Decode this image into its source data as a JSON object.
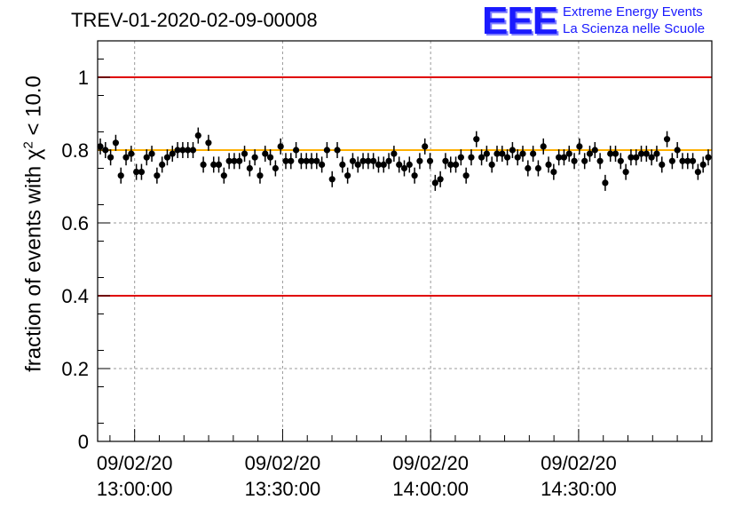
{
  "title": "TREV-01-2020-02-09-00008",
  "logo": {
    "mark": "EEE",
    "line1": "Extreme Energy Events",
    "line2": "La Scienza nelle Scuole",
    "color": "#1a1aff"
  },
  "chart_data": {
    "type": "scatter",
    "ylabel_prefix": "fraction of events with χ",
    "ylabel_sup": "2",
    "ylabel_suffix": " < 10.0",
    "ylim": [
      0,
      1.1
    ],
    "yticks": [
      "0",
      "0.2",
      "0.4",
      "0.6",
      "0.8",
      "1"
    ],
    "ytick_values": [
      0,
      0.2,
      0.4,
      0.6,
      0.8,
      1.0
    ],
    "xlim_minutes_since_1300": [
      -7.5,
      117
    ],
    "xtick_labels": [
      {
        "date": "09/02/20",
        "time": "13:00:00",
        "minute": 0
      },
      {
        "date": "09/02/20",
        "time": "13:30:00",
        "minute": 30
      },
      {
        "date": "09/02/20",
        "time": "14:00:00",
        "minute": 60
      },
      {
        "date": "09/02/20",
        "time": "14:30:00",
        "minute": 90
      }
    ],
    "grid": true,
    "reference_lines": [
      {
        "y": 1.0,
        "color": "#e00000"
      },
      {
        "y": 0.4,
        "color": "#e00000"
      },
      {
        "y": 0.8,
        "color": "#ffb000"
      }
    ],
    "marker_color": "#000000",
    "error_bar": 0.022,
    "y": [
      0.81,
      0.8,
      0.78,
      0.82,
      0.73,
      0.78,
      0.79,
      0.74,
      0.74,
      0.78,
      0.79,
      0.73,
      0.76,
      0.78,
      0.79,
      0.8,
      0.8,
      0.8,
      0.8,
      0.84,
      0.76,
      0.82,
      0.76,
      0.76,
      0.73,
      0.77,
      0.77,
      0.77,
      0.79,
      0.75,
      0.78,
      0.73,
      0.79,
      0.78,
      0.75,
      0.81,
      0.77,
      0.77,
      0.8,
      0.77,
      0.77,
      0.77,
      0.77,
      0.76,
      0.8,
      0.72,
      0.8,
      0.76,
      0.73,
      0.77,
      0.76,
      0.77,
      0.77,
      0.77,
      0.76,
      0.76,
      0.77,
      0.79,
      0.76,
      0.75,
      0.76,
      0.73,
      0.77,
      0.81,
      0.77,
      0.71,
      0.72,
      0.77,
      0.76,
      0.76,
      0.78,
      0.73,
      0.78,
      0.83,
      0.78,
      0.79,
      0.76,
      0.79,
      0.79,
      0.78,
      0.8,
      0.78,
      0.79,
      0.75,
      0.79,
      0.75,
      0.81,
      0.76,
      0.74,
      0.78,
      0.78,
      0.79,
      0.77,
      0.81,
      0.77,
      0.79,
      0.8,
      0.77,
      0.71,
      0.79,
      0.79,
      0.77,
      0.74,
      0.78,
      0.78,
      0.79,
      0.79,
      0.78,
      0.79,
      0.76,
      0.83,
      0.77,
      0.8,
      0.77,
      0.77,
      0.77,
      0.74,
      0.76,
      0.78
    ]
  }
}
